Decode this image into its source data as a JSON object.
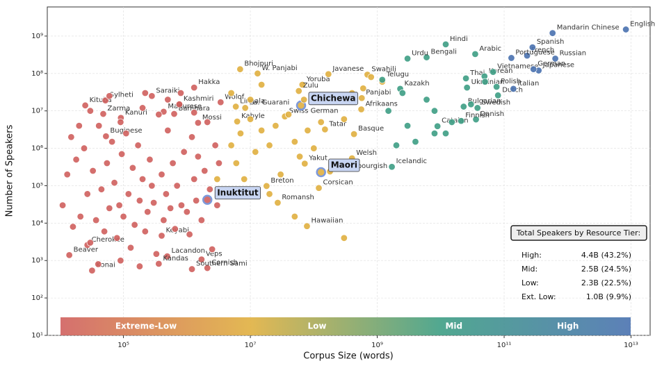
{
  "chart_data": {
    "type": "scatter",
    "xlabel": "Corpus Size (words)",
    "ylabel": "Number of Speakers",
    "xscale": "log",
    "yscale": "log",
    "grid": true,
    "xlim": [
      6300.0,
      20000000000000.0
    ],
    "ylim": [
      10,
      6000000000.0
    ],
    "xticks": [
      {
        "value": 100000.0,
        "label": "10⁵"
      },
      {
        "value": 10000000.0,
        "label": "10⁷"
      },
      {
        "value": 1000000000.0,
        "label": "10⁹"
      },
      {
        "value": 100000000000.0,
        "label": "10¹¹"
      },
      {
        "value": 10000000000000.0,
        "label": "10¹³"
      }
    ],
    "yticks": [
      {
        "value": 10,
        "label": "10¹"
      },
      {
        "value": 100,
        "label": "10²"
      },
      {
        "value": 1000,
        "label": "10³"
      },
      {
        "value": 10000.0,
        "label": "10⁴"
      },
      {
        "value": 100000.0,
        "label": "10⁵"
      },
      {
        "value": 1000000.0,
        "label": "10⁶"
      },
      {
        "value": 10000000.0,
        "label": "10⁷"
      },
      {
        "value": 100000000.0,
        "label": "10⁸"
      },
      {
        "value": 1000000000.0,
        "label": "10⁹"
      }
    ],
    "series": [
      {
        "name": "Extreme-Low",
        "color": "#d0605e",
        "x": [
          1300000.0,
          280000.0,
          760000.0,
          430000.0,
          3400000.0,
          25000.0,
          52000.0,
          48000.0,
          91000.0,
          630000.0,
          1500000.0,
          53000.0,
          27000.0,
          400000.0,
          14000.0,
          32000.0,
          490000.0,
          360000.0,
          1700000.0,
          2100000.0,
          1200000.0,
          2100000.0,
          11000.0,
          13000.0,
          16000.0,
          18000.0,
          21000.0,
          24000.0,
          27000.0,
          30000.0,
          33000.0,
          37000.0,
          41000.0,
          45000.0,
          50000.0,
          55000.0,
          60000.0,
          66000.0,
          72000.0,
          79000.0,
          86000.0,
          94000.0,
          100000.0,
          110000.0,
          120000.0,
          130000.0,
          140000.0,
          150000.0,
          170000.0,
          180000.0,
          200000.0,
          220000.0,
          240000.0,
          260000.0,
          280000.0,
          300000.0,
          330000.0,
          360000.0,
          400000.0,
          430000.0,
          470000.0,
          500000.0,
          550000.0,
          600000.0,
          650000.0,
          700000.0,
          760000.0,
          820000.0,
          900000.0,
          1000000.0,
          1100000.0,
          1200000.0,
          1300000.0,
          1400000.0,
          1500000.0,
          1700000.0,
          1900000.0,
          2100000.0,
          2300000.0,
          2500000.0,
          2800000.0,
          3000000.0,
          3200000.0,
          15000.0,
          20000.0,
          30000.0,
          60000.0,
          90000.0,
          200000.0,
          500000.0,
          800000.0,
          1300000.0,
          220000.0,
          40000.0,
          90000.0,
          180000.0
        ],
        "values": [
          42000000.0,
          25000000.0,
          15000000.0,
          9500000.0,
          17000000.0,
          14000000.0,
          19000000.0,
          8300000.0,
          6500000.0,
          8300000.0,
          4800000.0,
          2100000.0,
          2600,
          4600,
          1400,
          540,
          1300,
          820,
          1070,
          630,
          590,
          42000.0,
          30000.0,
          200000.0,
          8000.0,
          500000.0,
          15000.0,
          1000000.0,
          60000.0,
          3000.0,
          250000.0,
          12000.0,
          4000000.0,
          80000.0,
          6000.0,
          400000.0,
          25000.0,
          1500000.0,
          120000.0,
          4000.0,
          30000.0,
          700000.0,
          15000.0,
          2500000.0,
          60000.0,
          2200,
          300000.0,
          9000.0,
          1200000.0,
          40000.0,
          150000.0,
          6000.0,
          20000.0,
          500000.0,
          100000.0,
          35000.0,
          1500,
          8000000.0,
          200000.0,
          12000.0,
          60000.0,
          3000000.0,
          25000.0,
          400000.0,
          7000.0,
          100000.0,
          15000000.0,
          30000.0,
          800000.0,
          20000.0,
          5000.0,
          2000000.0,
          150000.0,
          40000.0,
          600000.0,
          12000.0,
          250000.0,
          5000000.0,
          80000.0,
          2000.0,
          1200000.0,
          30000.0,
          400000.0,
          2000000.0,
          4000000.0,
          10000000.0,
          25000000.0,
          5000000.0,
          12000000.0,
          20000000.0,
          30000000.0,
          9000000.0,
          30000000.0,
          800,
          1000,
          700
        ],
        "labels": [
          "Hakka",
          "Saraiki",
          "Kashmiri",
          "Madurese",
          "Wolof",
          "Kituba",
          "Sylheti",
          "Zarma",
          "Kanuri",
          "Bambara",
          "Mossi",
          "Buginese",
          "Cherokee",
          "Keyabi",
          "Beaver",
          "Konai",
          "Lacandon",
          "Kandas",
          "Veps",
          "Cornish",
          "Southern Sami",
          "Inuktitut",
          null,
          null,
          null,
          null,
          null,
          null,
          null,
          null,
          null,
          null,
          null,
          null,
          null,
          null,
          null,
          null,
          null,
          null,
          null,
          null,
          null,
          null,
          null,
          null,
          null,
          null,
          null,
          null,
          null,
          null,
          null,
          null,
          null,
          null,
          null,
          null,
          null,
          null,
          null,
          null,
          null,
          null,
          null,
          null,
          null,
          null,
          null,
          null,
          null,
          null,
          null,
          null,
          null,
          null,
          null,
          null,
          null,
          null,
          null,
          null,
          null,
          null,
          null,
          null,
          null,
          null,
          null,
          null,
          null
        ],
        "highlight": [
          21
        ]
      },
      {
        "name": "Low",
        "color": "#e0b040",
        "x": [
          6900000.0,
          13000000.0,
          66000000.0,
          170000000.0,
          700000000.0,
          58000000.0,
          5900000.0,
          570000000.0,
          560000000.0,
          8300000.0,
          6200000.0,
          35000000.0,
          150000000.0,
          430000000.0,
          400000000.0,
          130000000.0,
          63000000.0,
          72000000.0,
          180000000.0,
          18000000.0,
          120000000.0,
          27000000.0,
          78000000.0,
          5000000.0,
          6000000.0,
          7000000.0,
          8000000.0,
          10000000.0,
          12000000.0,
          15000000.0,
          20000000.0,
          25000000.0,
          30000000.0,
          40000000.0,
          50000000.0,
          60000000.0,
          80000000.0,
          100000000.0,
          130000000.0,
          200000000.0,
          300000000.0,
          400000000.0,
          600000000.0,
          800000000.0,
          1200000000.0,
          5000000.0,
          10000000.0,
          3000000.0,
          20000000.0,
          50000000.0,
          300000000.0,
          15000000.0,
          70000000.0
        ],
        "values": [
          130000000.0,
          100000000.0,
          50000000.0,
          96000000.0,
          93000000.0,
          34000000.0,
          13000000.0,
          22000000.0,
          11000000.0,
          12000000.0,
          5200000.0,
          7100000.0,
          3200000.0,
          2400000.0,
          540000.0,
          230000.0,
          14000000.0,
          390000.0,
          240000.0,
          98000.0,
          87000.0,
          35000.0,
          8300,
          1200000.0,
          400000.0,
          2500000.0,
          150000.0,
          6000000.0,
          800000.0,
          3000000.0,
          1200000.0,
          4000000.0,
          200000.0,
          8000000.0,
          1500000.0,
          600000.0,
          3000000.0,
          1000000.0,
          5000000.0,
          20000000.0,
          6000000.0,
          30000000.0,
          40000000.0,
          80000000.0,
          60000000.0,
          30000000.0,
          20000000.0,
          150000.0,
          60000.0,
          15000.0,
          4000.0,
          50000000.0,
          20000000.0
        ],
        "labels": [
          "Bhojpuri",
          "W. Panjabi",
          "Yoruba",
          "Javanese",
          "Swahili",
          "Zulu",
          "Lingala",
          "Panjabi",
          "Afrikaans",
          "Pa. Guarani",
          "Kabyle",
          "Swiss German",
          "Tatar",
          "Basque",
          "Welsh",
          "Maori",
          "Chichewa",
          "Yakut",
          "Luxembourgish",
          "Breton",
          "Corsican",
          "Romansh",
          "Hawaiian",
          null,
          null,
          null,
          null,
          null,
          null,
          null,
          null,
          null,
          null,
          null,
          null,
          null,
          null,
          null,
          null,
          null,
          null,
          null,
          null,
          null,
          null,
          null,
          null,
          null,
          null,
          null,
          null,
          null,
          null
        ],
        "highlight": [
          15,
          16
        ]
      },
      {
        "name": "Mid",
        "color": "#3e9e84",
        "x": [
          12000000000.0,
          35000000000.0,
          6000000000.0,
          3000000000.0,
          25000000000.0,
          49000000000.0,
          67000000000.0,
          26000000000.0,
          76000000000.0,
          80000000000.0,
          23000000000.0,
          38000000000.0,
          8900000000.0,
          36000000000.0,
          21000000000.0,
          2300000000.0,
          1200000000.0,
          1700000000.0,
          1500000000.0,
          2000000000.0,
          3000000000.0,
          4000000000.0,
          6000000000.0,
          8000000000.0,
          12000000000.0,
          15000000000.0,
          30000000000.0,
          50000000000.0,
          2500000000.0,
          8000000000.0
        ],
        "values": [
          600000000.0,
          330000000.0,
          270000000.0,
          250000000.0,
          74000000.0,
          84000000.0,
          110000000.0,
          42000000.0,
          44000000.0,
          26000000.0,
          13000000.0,
          12000000.0,
          3900000.0,
          5900000.0,
          5400000.0,
          39000000.0,
          68000000.0,
          320000.0,
          10000000.0,
          1200000.0,
          4000000.0,
          1500000.0,
          20000000.0,
          10000000.0,
          2500000.0,
          5000000.0,
          15000000.0,
          60000000.0,
          30000000.0,
          2500000.0
        ],
        "labels": [
          "Hindi",
          "Arabic",
          "Bengali",
          "Urdu",
          "Thai",
          "Korean",
          "Vietnamese",
          "Ukrainian",
          "Polish",
          "Dutch",
          "Bulgarian",
          "Swedish",
          "Catalan",
          "Danish",
          "Finnish",
          "Kazakh",
          "Telugu",
          "Icelandic",
          null,
          null,
          null,
          null,
          null,
          null,
          null,
          null,
          null,
          null,
          null,
          null
        ],
        "highlight": []
      },
      {
        "name": "High",
        "color": "#4a72b0",
        "x": [
          8300000000000.0,
          580000000000.0,
          230000000000.0,
          280000000000.0,
          640000000000.0,
          350000000000.0,
          290000000000.0,
          130000000000.0,
          140000000000.0
        ],
        "values": [
          1500000000.0,
          1200000000.0,
          300000000.0,
          500000000.0,
          250000000.0,
          120000000.0,
          130000000.0,
          260000000.0,
          39000000.0
        ],
        "labels": [
          "English",
          "Mandarin Chinese",
          "French",
          "Spanish",
          "Russian",
          "Japanese",
          "German",
          "Portuguese",
          "Italian"
        ],
        "highlight": []
      }
    ],
    "summary": {
      "title": "Total Speakers by Resource Tier:",
      "rows": [
        [
          "High:",
          "4.4B (43.2%)"
        ],
        [
          "Mid:",
          "2.5B (24.5%)"
        ],
        [
          "Low:",
          "2.3B (22.5%)"
        ],
        [
          "Ext. Low:",
          "1.0B (9.9%)"
        ]
      ]
    }
  }
}
